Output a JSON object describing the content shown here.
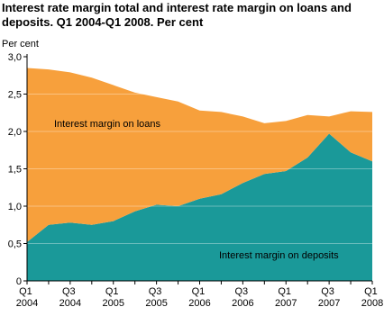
{
  "chart_data": {
    "type": "stacked_area",
    "title_lines": [
      "Interest rate margin total and interest rate margin on loans and",
      "deposits. Q1 2004-Q1 2008. Per cent"
    ],
    "y_label": "Per cent",
    "categories": [
      "Q1 2004",
      null,
      "Q3 2004",
      null,
      "Q1 2005",
      null,
      "Q3 2005",
      null,
      "Q1 2006",
      null,
      "Q3 2006",
      null,
      "Q1 2007",
      null,
      "Q3 2007",
      null,
      "Q1 2008"
    ],
    "series": [
      {
        "name": "Interest margin on deposits",
        "color": "#1a9999",
        "values": [
          0.52,
          0.75,
          0.78,
          0.75,
          0.8,
          0.93,
          1.02,
          1.0,
          1.1,
          1.16,
          1.31,
          1.43,
          1.47,
          1.65,
          1.97,
          1.72,
          1.6
        ]
      },
      {
        "name": "Interest margin on loans",
        "color": "#f7a03c",
        "values": [
          2.33,
          2.08,
          2.01,
          1.97,
          1.82,
          1.59,
          1.44,
          1.4,
          1.18,
          1.1,
          0.89,
          0.68,
          0.67,
          0.57,
          0.23,
          0.55,
          0.66
        ]
      }
    ],
    "ylim": [
      0,
      3
    ],
    "yticks": [
      {
        "value": 0,
        "label": "0"
      },
      {
        "value": 0.5,
        "label": "0,5"
      },
      {
        "value": 1,
        "label": "1,0"
      },
      {
        "value": 1.5,
        "label": "1,5"
      },
      {
        "value": 2,
        "label": "2,0"
      },
      {
        "value": 2.5,
        "label": "2,5"
      },
      {
        "value": 3,
        "label": "3,0"
      }
    ],
    "grid": true
  }
}
